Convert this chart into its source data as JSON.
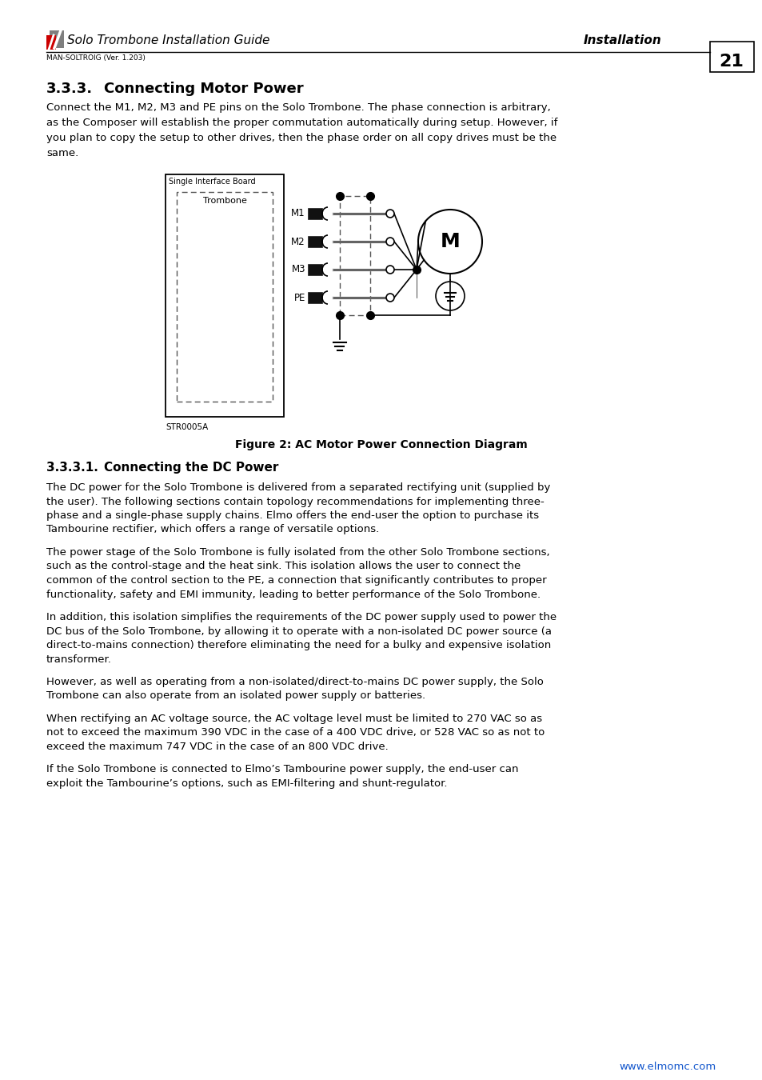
{
  "page_number": "21",
  "header_title": "Solo Trombone Installation Guide",
  "header_right": "Installation",
  "header_sub": "MAN-SOLTROIG (Ver. 1.203)",
  "section_title": "3.3.3.      Connecting Motor Power",
  "body_text_1": "Connect the M1, M2, M3 and PE pins on the Solo Trombone. The phase connection is arbitrary,\nas the Composer will establish the proper commutation automatically during setup. However, if\nyou plan to copy the setup to other drives, then the phase order on all copy drives must be the\nsame.",
  "fig_label": "STR0005A",
  "fig_caption": "Figure 2: AC Motor Power Connection Diagram",
  "subsection_title": "3.3.3.1.      Connecting the DC Power",
  "para1": "The DC power for the Solo Trombone is delivered from a separated rectifying unit (supplied by\nthe user). The following sections contain topology recommendations for implementing three-\nphase and a single-phase supply chains. Elmo offers the end-user the option to purchase its\nTambourine rectifier, which offers a range of versatile options.",
  "para2": "The power stage of the Solo Trombone is fully isolated from the other Solo Trombone sections,\nsuch as the control-stage and the heat sink. This isolation allows the user to connect the\ncommon of the control section to the PE, a connection that significantly contributes to proper\nfunctionality, safety and EMI immunity, leading to better performance of the Solo Trombone.",
  "para3": "In addition, this isolation simplifies the requirements of the DC power supply used to power the\nDC bus of the Solo Trombone, by allowing it to operate with a non-isolated DC power source (a\ndirect-to-mains connection) therefore eliminating the need for a bulky and expensive isolation\ntransformer.",
  "para4": "However, as well as operating from a non-isolated/direct-to-mains DC power supply, the Solo\nTrombone can also operate from an isolated power supply or batteries.",
  "para5": "When rectifying an AC voltage source, the AC voltage level must be limited to 270 VAC so as\nnot to exceed the maximum 390 VDC in the case of a 400 VDC drive, or 528 VAC so as not to\nexceed the maximum 747 VDC in the case of an 800 VDC drive.",
  "para6": "If the Solo Trombone is connected to Elmo’s Tambourine power supply, the end-user can\nexploit the Tambourine’s options, such as EMI-filtering and shunt-regulator.",
  "footer_url": "www.elmomc.com",
  "bg_color": "#ffffff",
  "text_color": "#000000",
  "accent_color": "#cc0000",
  "url_color": "#1155cc"
}
